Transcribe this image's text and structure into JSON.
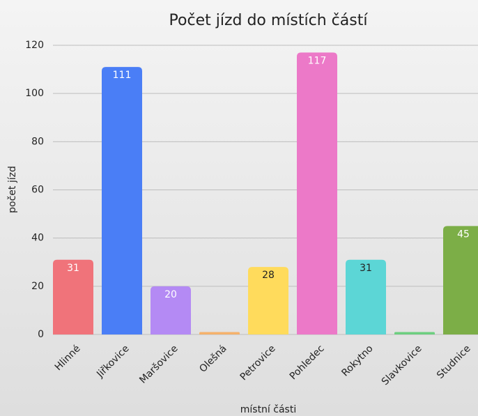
{
  "chart_data": {
    "type": "bar",
    "title": "Počet jízd do místích částí",
    "x_label": "místní části",
    "y_label": "počet jízd",
    "categories": [
      "Hlinné",
      "Jiřkovice",
      "Maršovice",
      "Olešná",
      "Petrovice",
      "Pohledec",
      "Rokytno",
      "Slavkovice",
      "Studnice"
    ],
    "values": [
      31,
      111,
      20,
      1,
      28,
      117,
      31,
      1,
      45
    ],
    "colors": [
      "#f0737a",
      "#4a7ef6",
      "#b48af4",
      "#f5b26c",
      "#ffdb5c",
      "#ec79c8",
      "#5cd6d6",
      "#6dcf80",
      "#7cae47"
    ],
    "value_label_colors": [
      "#ffffff",
      "#ffffff",
      "#ffffff",
      "#ffffff",
      "#222222",
      "#ffffff",
      "#222222",
      "#ffffff",
      "#ffffff"
    ],
    "ylim": [
      0,
      120
    ],
    "yticks": [
      0,
      20,
      40,
      60,
      80,
      100,
      120
    ],
    "grid": true
  }
}
